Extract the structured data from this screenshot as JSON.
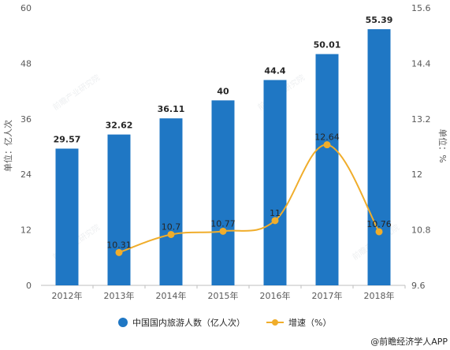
{
  "chart_data": {
    "type": "bar",
    "categories": [
      "2012年",
      "2013年",
      "2014年",
      "2015年",
      "2016年",
      "2017年",
      "2018年"
    ],
    "series": [
      {
        "name": "中国国内旅游人数（亿人次）",
        "type": "bar",
        "axis": "left",
        "values": [
          29.57,
          32.62,
          36.11,
          40,
          44.4,
          50.01,
          55.39
        ],
        "labels": [
          "29.57",
          "32.62",
          "36.11",
          "40",
          "44.4",
          "50.01",
          "55.39"
        ],
        "color": "#1f77c4"
      },
      {
        "name": "增速（%）",
        "type": "line",
        "axis": "right",
        "values": [
          null,
          10.31,
          10.7,
          10.77,
          11,
          12.64,
          10.76
        ],
        "labels": [
          "",
          "10.31",
          "10.7",
          "10.77",
          "11",
          "12.64",
          "10.76"
        ],
        "color": "#f0ad2b"
      }
    ],
    "ylabel": "单位：亿人次",
    "y2label": "单位：%",
    "ylim": [
      0,
      60
    ],
    "yticks": [
      "0",
      "12",
      "24",
      "36",
      "48",
      "60"
    ],
    "y2lim": [
      9.6,
      15.6
    ],
    "y2ticks": [
      "9.6",
      "10.8",
      "12",
      "13.2",
      "14.4",
      "15.6"
    ],
    "grid": false,
    "legend_position": "bottom"
  },
  "footer": {
    "source": "@前瞻经济学人APP"
  }
}
